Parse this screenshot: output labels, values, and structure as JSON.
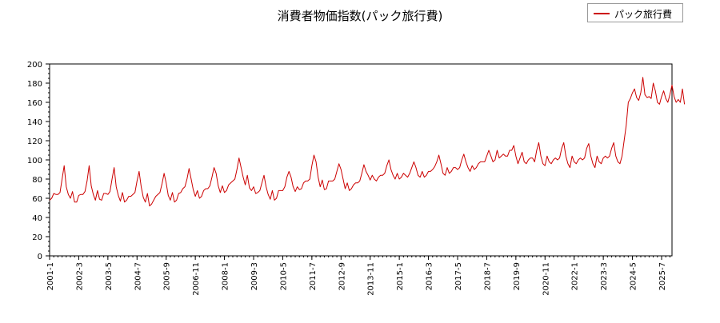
{
  "chart_data": {
    "type": "line",
    "title": "消費者物価指数(パック旅行費)",
    "xlabel": "",
    "ylabel": "",
    "ylim": [
      0,
      200
    ],
    "yticks": [
      0,
      20,
      40,
      60,
      80,
      100,
      120,
      140,
      160,
      180,
      200
    ],
    "x_tick_labels": [
      "2001-1",
      "2002-3",
      "2003-5",
      "2004-7",
      "2005-9",
      "2006-11",
      "2008-1",
      "2009-3",
      "2010-5",
      "2011-7",
      "2012-9",
      "2013-11",
      "2015-1",
      "2016-3",
      "2017-5",
      "2018-7",
      "2019-9",
      "2020-11",
      "2022-1",
      "2023-3",
      "2024-5",
      "2025-7"
    ],
    "x_start": "2001-1",
    "x_end": "2025-12",
    "legend_position": "top-right",
    "series": [
      {
        "name": "パック旅行費",
        "color": "#cc0000",
        "values": [
          58,
          60,
          65,
          64,
          64,
          66,
          80,
          94,
          72,
          64,
          60,
          67,
          56,
          56,
          63,
          64,
          64,
          67,
          78,
          94,
          73,
          64,
          58,
          68,
          59,
          58,
          65,
          65,
          64,
          67,
          80,
          92,
          72,
          63,
          57,
          66,
          56,
          58,
          62,
          62,
          64,
          66,
          78,
          88,
          72,
          61,
          56,
          65,
          52,
          54,
          58,
          62,
          64,
          66,
          75,
          86,
          76,
          63,
          58,
          66,
          56,
          58,
          65,
          66,
          70,
          72,
          80,
          91,
          80,
          69,
          62,
          68,
          60,
          62,
          68,
          70,
          70,
          73,
          82,
          92,
          86,
          73,
          66,
          73,
          66,
          68,
          74,
          76,
          78,
          80,
          90,
          102,
          92,
          82,
          74,
          84,
          71,
          68,
          72,
          65,
          66,
          68,
          76,
          84,
          72,
          64,
          59,
          68,
          58,
          60,
          68,
          68,
          68,
          72,
          82,
          88,
          82,
          72,
          67,
          72,
          69,
          70,
          76,
          78,
          78,
          80,
          94,
          105,
          98,
          82,
          72,
          79,
          69,
          70,
          78,
          78,
          78,
          80,
          88,
          96,
          90,
          80,
          70,
          76,
          68,
          70,
          74,
          76,
          76,
          78,
          86,
          95,
          88,
          84,
          79,
          84,
          80,
          78,
          82,
          84,
          84,
          86,
          94,
          100,
          90,
          84,
          80,
          86,
          80,
          82,
          86,
          84,
          82,
          86,
          92,
          98,
          92,
          84,
          82,
          88,
          82,
          84,
          88,
          88,
          90,
          93,
          98,
          105,
          96,
          86,
          84,
          92,
          86,
          88,
          92,
          92,
          90,
          92,
          100,
          106,
          98,
          92,
          88,
          94,
          90,
          92,
          96,
          98,
          98,
          98,
          104,
          110,
          104,
          98,
          100,
          110,
          102,
          104,
          106,
          104,
          104,
          110,
          110,
          115,
          104,
          96,
          102,
          108,
          98,
          96,
          100,
          102,
          102,
          98,
          110,
          118,
          104,
          96,
          94,
          104,
          98,
          96,
          100,
          102,
          100,
          102,
          112,
          118,
          104,
          96,
          92,
          104,
          98,
          96,
          100,
          102,
          100,
          102,
          112,
          117,
          104,
          96,
          92,
          104,
          98,
          96,
          102,
          104,
          102,
          104,
          112,
          118,
          104,
          98,
          96,
          104,
          120,
          136,
          160,
          164,
          170,
          174,
          165,
          162,
          170,
          186,
          168,
          165,
          166,
          164,
          180,
          172,
          160,
          158,
          166,
          172,
          164,
          160,
          168,
          178,
          166,
          160,
          163,
          160,
          174,
          158
        ]
      }
    ]
  }
}
